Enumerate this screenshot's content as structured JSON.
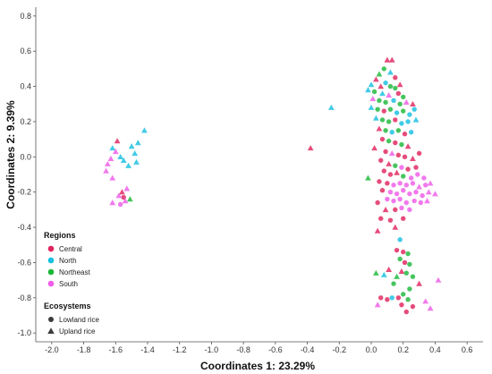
{
  "chart_data": {
    "type": "scatter",
    "xlabel": "Coordinates 1: 23.29%",
    "ylabel": "Coordinates 2: 9.39%",
    "xlim": [
      -2.1,
      0.7
    ],
    "ylim": [
      -1.05,
      0.85
    ],
    "x_ticks": [
      "-2.0",
      "-1.8",
      "-1.6",
      "-1.4",
      "-1.2",
      "-1.0",
      "-0.8",
      "-0.6",
      "-0.4",
      "-0.2",
      "0.0",
      "0.2",
      "0.4",
      "0.6"
    ],
    "y_ticks": [
      "-1.0",
      "-0.8",
      "-0.6",
      "-0.4",
      "-0.2",
      "0.0",
      "0.2",
      "0.4",
      "0.6",
      "0.8"
    ],
    "grid": false,
    "legend": {
      "placement": "bottom-left",
      "regions_title": "Regions",
      "regions": [
        {
          "name": "Central",
          "color": "#E0245E"
        },
        {
          "name": "North",
          "color": "#17BFE0"
        },
        {
          "name": "Northeast",
          "color": "#1DB83A"
        },
        {
          "name": "South",
          "color": "#EE5CE8"
        }
      ],
      "ecosystems_title": "Ecosystems",
      "ecosystems": [
        {
          "name": "Lowland rice",
          "shape": "circle"
        },
        {
          "name": "Upland rice",
          "shape": "triangle"
        }
      ]
    },
    "points": [
      {
        "x": -1.59,
        "y": 0.09,
        "region": "Central",
        "eco": "Upland rice"
      },
      {
        "x": -1.62,
        "y": 0.05,
        "region": "North",
        "eco": "Upland rice"
      },
      {
        "x": -1.6,
        "y": 0.03,
        "region": "South",
        "eco": "Upland rice"
      },
      {
        "x": -1.57,
        "y": 0.0,
        "region": "North",
        "eco": "Upland rice"
      },
      {
        "x": -1.63,
        "y": -0.01,
        "region": "South",
        "eco": "Upland rice"
      },
      {
        "x": -1.65,
        "y": -0.04,
        "region": "South",
        "eco": "Upland rice"
      },
      {
        "x": -1.66,
        "y": -0.08,
        "region": "South",
        "eco": "Upland rice"
      },
      {
        "x": -1.62,
        "y": -0.12,
        "region": "South",
        "eco": "Upland rice"
      },
      {
        "x": -1.55,
        "y": -0.02,
        "region": "North",
        "eco": "Upland rice"
      },
      {
        "x": -1.52,
        "y": -0.05,
        "region": "North",
        "eco": "Upland rice"
      },
      {
        "x": -1.48,
        "y": 0.02,
        "region": "North",
        "eco": "Upland rice"
      },
      {
        "x": -1.46,
        "y": 0.08,
        "region": "North",
        "eco": "Upland rice"
      },
      {
        "x": -1.42,
        "y": 0.15,
        "region": "North",
        "eco": "Upland rice"
      },
      {
        "x": -1.5,
        "y": 0.06,
        "region": "North",
        "eco": "Upland rice"
      },
      {
        "x": -1.47,
        "y": -0.03,
        "region": "North",
        "eco": "Upland rice"
      },
      {
        "x": -1.56,
        "y": -0.2,
        "region": "Central",
        "eco": "Upland rice"
      },
      {
        "x": -1.53,
        "y": -0.18,
        "region": "South",
        "eco": "Upland rice"
      },
      {
        "x": -1.55,
        "y": -0.23,
        "region": "Central",
        "eco": "Lowland rice"
      },
      {
        "x": -1.58,
        "y": -0.22,
        "region": "South",
        "eco": "Upland rice"
      },
      {
        "x": -1.54,
        "y": -0.25,
        "region": "South",
        "eco": "Upland rice"
      },
      {
        "x": -1.51,
        "y": -0.24,
        "region": "Northeast",
        "eco": "Upland rice"
      },
      {
        "x": -1.62,
        "y": -0.26,
        "region": "South",
        "eco": "Upland rice"
      },
      {
        "x": -1.57,
        "y": -0.27,
        "region": "South",
        "eco": "Lowland rice"
      },
      {
        "x": -0.25,
        "y": 0.28,
        "region": "North",
        "eco": "Upland rice"
      },
      {
        "x": -0.38,
        "y": 0.05,
        "region": "Central",
        "eco": "Upland rice"
      },
      {
        "x": 0.1,
        "y": 0.55,
        "region": "Central",
        "eco": "Upland rice"
      },
      {
        "x": 0.13,
        "y": 0.55,
        "region": "Central",
        "eco": "Upland rice"
      },
      {
        "x": 0.08,
        "y": 0.5,
        "region": "Northeast",
        "eco": "Lowland rice"
      },
      {
        "x": 0.12,
        "y": 0.48,
        "region": "North",
        "eco": "Upland rice"
      },
      {
        "x": 0.05,
        "y": 0.47,
        "region": "Northeast",
        "eco": "Upland rice"
      },
      {
        "x": 0.15,
        "y": 0.45,
        "region": "Central",
        "eco": "Lowland rice"
      },
      {
        "x": 0.03,
        "y": 0.44,
        "region": "Central",
        "eco": "Upland rice"
      },
      {
        "x": 0.18,
        "y": 0.41,
        "region": "Central",
        "eco": "Upland rice"
      },
      {
        "x": 0.0,
        "y": 0.41,
        "region": "North",
        "eco": "Upland rice"
      },
      {
        "x": 0.06,
        "y": 0.4,
        "region": "Central",
        "eco": "Upland rice"
      },
      {
        "x": 0.09,
        "y": 0.42,
        "region": "North",
        "eco": "Lowland rice"
      },
      {
        "x": 0.12,
        "y": 0.4,
        "region": "Northeast",
        "eco": "Lowland rice"
      },
      {
        "x": 0.15,
        "y": 0.39,
        "region": "Northeast",
        "eco": "Lowland rice"
      },
      {
        "x": -0.02,
        "y": 0.38,
        "region": "North",
        "eco": "Upland rice"
      },
      {
        "x": 0.02,
        "y": 0.37,
        "region": "Northeast",
        "eco": "Lowland rice"
      },
      {
        "x": 0.07,
        "y": 0.36,
        "region": "North",
        "eco": "Upland rice"
      },
      {
        "x": 0.11,
        "y": 0.35,
        "region": "South",
        "eco": "Upland rice"
      },
      {
        "x": 0.17,
        "y": 0.36,
        "region": "Central",
        "eco": "Lowland rice"
      },
      {
        "x": 0.2,
        "y": 0.34,
        "region": "Northeast",
        "eco": "Lowland rice"
      },
      {
        "x": 0.01,
        "y": 0.33,
        "region": "South",
        "eco": "Upland rice"
      },
      {
        "x": 0.05,
        "y": 0.32,
        "region": "Northeast",
        "eco": "Lowland rice"
      },
      {
        "x": 0.09,
        "y": 0.31,
        "region": "Northeast",
        "eco": "Lowland rice"
      },
      {
        "x": 0.14,
        "y": 0.32,
        "region": "North",
        "eco": "Lowland rice"
      },
      {
        "x": 0.18,
        "y": 0.3,
        "region": "Northeast",
        "eco": "Lowland rice"
      },
      {
        "x": 0.22,
        "y": 0.31,
        "region": "South",
        "eco": "Upland rice"
      },
      {
        "x": 0.26,
        "y": 0.3,
        "region": "Central",
        "eco": "Upland rice"
      },
      {
        "x": 0.0,
        "y": 0.28,
        "region": "North",
        "eco": "Upland rice"
      },
      {
        "x": 0.04,
        "y": 0.27,
        "region": "Northeast",
        "eco": "Lowland rice"
      },
      {
        "x": 0.08,
        "y": 0.26,
        "region": "Central",
        "eco": "Lowland rice"
      },
      {
        "x": 0.12,
        "y": 0.27,
        "region": "Northeast",
        "eco": "Lowland rice"
      },
      {
        "x": 0.16,
        "y": 0.25,
        "region": "North",
        "eco": "Lowland rice"
      },
      {
        "x": 0.2,
        "y": 0.26,
        "region": "Northeast",
        "eco": "Lowland rice"
      },
      {
        "x": 0.24,
        "y": 0.24,
        "region": "North",
        "eco": "Lowland rice"
      },
      {
        "x": 0.27,
        "y": 0.27,
        "region": "North",
        "eco": "Lowland rice"
      },
      {
        "x": 0.03,
        "y": 0.22,
        "region": "North",
        "eco": "Upland rice"
      },
      {
        "x": 0.07,
        "y": 0.21,
        "region": "Northeast",
        "eco": "Lowland rice"
      },
      {
        "x": 0.11,
        "y": 0.2,
        "region": "Northeast",
        "eco": "Lowland rice"
      },
      {
        "x": 0.15,
        "y": 0.21,
        "region": "Central",
        "eco": "Lowland rice"
      },
      {
        "x": 0.19,
        "y": 0.19,
        "region": "North",
        "eco": "Lowland rice"
      },
      {
        "x": 0.23,
        "y": 0.2,
        "region": "North",
        "eco": "Lowland rice"
      },
      {
        "x": 0.28,
        "y": 0.21,
        "region": "North",
        "eco": "Upland rice"
      },
      {
        "x": 0.05,
        "y": 0.16,
        "region": "Central",
        "eco": "Upland rice"
      },
      {
        "x": 0.09,
        "y": 0.15,
        "region": "Northeast",
        "eco": "Lowland rice"
      },
      {
        "x": 0.13,
        "y": 0.14,
        "region": "North",
        "eco": "Lowland rice"
      },
      {
        "x": 0.17,
        "y": 0.15,
        "region": "Northeast",
        "eco": "Lowland rice"
      },
      {
        "x": 0.21,
        "y": 0.13,
        "region": "Central",
        "eco": "Lowland rice"
      },
      {
        "x": 0.25,
        "y": 0.14,
        "region": "North",
        "eco": "Lowland rice"
      },
      {
        "x": 0.07,
        "y": 0.1,
        "region": "Central",
        "eco": "Lowland rice"
      },
      {
        "x": 0.11,
        "y": 0.09,
        "region": "Northeast",
        "eco": "Lowland rice"
      },
      {
        "x": 0.15,
        "y": 0.08,
        "region": "Central",
        "eco": "Lowland rice"
      },
      {
        "x": 0.19,
        "y": 0.07,
        "region": "Northeast",
        "eco": "Lowland rice"
      },
      {
        "x": 0.23,
        "y": 0.06,
        "region": "Central",
        "eco": "Upland rice"
      },
      {
        "x": 0.02,
        "y": 0.05,
        "region": "Central",
        "eco": "Upland rice"
      },
      {
        "x": 0.09,
        "y": 0.03,
        "region": "Central",
        "eco": "Lowland rice"
      },
      {
        "x": 0.13,
        "y": 0.02,
        "region": "South",
        "eco": "Upland rice"
      },
      {
        "x": 0.17,
        "y": 0.01,
        "region": "Central",
        "eco": "Lowland rice"
      },
      {
        "x": 0.21,
        "y": 0.0,
        "region": "Central",
        "eco": "Lowland rice"
      },
      {
        "x": 0.26,
        "y": -0.01,
        "region": "Central",
        "eco": "Upland rice"
      },
      {
        "x": 0.3,
        "y": 0.02,
        "region": "Central",
        "eco": "Lowland rice"
      },
      {
        "x": 0.06,
        "y": -0.02,
        "region": "Central",
        "eco": "Lowland rice"
      },
      {
        "x": 0.11,
        "y": -0.04,
        "region": "Central",
        "eco": "Upland rice"
      },
      {
        "x": 0.15,
        "y": -0.05,
        "region": "Northeast",
        "eco": "Lowland rice"
      },
      {
        "x": 0.19,
        "y": -0.06,
        "region": "South",
        "eco": "Lowland rice"
      },
      {
        "x": 0.23,
        "y": -0.07,
        "region": "Central",
        "eco": "Lowland rice"
      },
      {
        "x": 0.28,
        "y": -0.06,
        "region": "Central",
        "eco": "Lowland rice"
      },
      {
        "x": 0.08,
        "y": -0.08,
        "region": "Central",
        "eco": "Lowland rice"
      },
      {
        "x": 0.12,
        "y": -0.1,
        "region": "Central",
        "eco": "Lowland rice"
      },
      {
        "x": 0.16,
        "y": -0.09,
        "region": "Central",
        "eco": "Upland rice"
      },
      {
        "x": 0.2,
        "y": -0.11,
        "region": "Northeast",
        "eco": "Lowland rice"
      },
      {
        "x": 0.25,
        "y": -0.12,
        "region": "South",
        "eco": "Lowland rice"
      },
      {
        "x": 0.29,
        "y": -0.1,
        "region": "South",
        "eco": "Lowland rice"
      },
      {
        "x": 0.33,
        "y": -0.12,
        "region": "South",
        "eco": "Lowland rice"
      },
      {
        "x": -0.02,
        "y": -0.12,
        "region": "Northeast",
        "eco": "Upland rice"
      },
      {
        "x": 0.05,
        "y": -0.14,
        "region": "Central",
        "eco": "Lowland rice"
      },
      {
        "x": 0.1,
        "y": -0.15,
        "region": "Central",
        "eco": "Lowland rice"
      },
      {
        "x": 0.14,
        "y": -0.16,
        "region": "South",
        "eco": "Lowland rice"
      },
      {
        "x": 0.18,
        "y": -0.15,
        "region": "South",
        "eco": "Lowland rice"
      },
      {
        "x": 0.22,
        "y": -0.16,
        "region": "South",
        "eco": "Lowland rice"
      },
      {
        "x": 0.26,
        "y": -0.15,
        "region": "South",
        "eco": "Lowland rice"
      },
      {
        "x": 0.3,
        "y": -0.17,
        "region": "South",
        "eco": "Upland rice"
      },
      {
        "x": 0.34,
        "y": -0.16,
        "region": "South",
        "eco": "Lowland rice"
      },
      {
        "x": 0.37,
        "y": -0.15,
        "region": "South",
        "eco": "Upland rice"
      },
      {
        "x": 0.07,
        "y": -0.19,
        "region": "Central",
        "eco": "Lowland rice"
      },
      {
        "x": 0.12,
        "y": -0.2,
        "region": "South",
        "eco": "Lowland rice"
      },
      {
        "x": 0.16,
        "y": -0.21,
        "region": "South",
        "eco": "Lowland rice"
      },
      {
        "x": 0.2,
        "y": -0.19,
        "region": "South",
        "eco": "Lowland rice"
      },
      {
        "x": 0.24,
        "y": -0.21,
        "region": "South",
        "eco": "Lowland rice"
      },
      {
        "x": 0.28,
        "y": -0.2,
        "region": "South",
        "eco": "Lowland rice"
      },
      {
        "x": 0.32,
        "y": -0.22,
        "region": "South",
        "eco": "Lowland rice"
      },
      {
        "x": 0.36,
        "y": -0.2,
        "region": "South",
        "eco": "Upland rice"
      },
      {
        "x": 0.4,
        "y": -0.21,
        "region": "South",
        "eco": "Upland rice"
      },
      {
        "x": 0.1,
        "y": -0.24,
        "region": "South",
        "eco": "Lowland rice"
      },
      {
        "x": 0.14,
        "y": -0.25,
        "region": "South",
        "eco": "Lowland rice"
      },
      {
        "x": 0.18,
        "y": -0.24,
        "region": "South",
        "eco": "Lowland rice"
      },
      {
        "x": 0.22,
        "y": -0.26,
        "region": "South",
        "eco": "Lowland rice"
      },
      {
        "x": 0.27,
        "y": -0.25,
        "region": "South",
        "eco": "Lowland rice"
      },
      {
        "x": 0.31,
        "y": -0.26,
        "region": "South",
        "eco": "Lowland rice"
      },
      {
        "x": 0.35,
        "y": -0.25,
        "region": "South",
        "eco": "Upland rice"
      },
      {
        "x": 0.04,
        "y": -0.26,
        "region": "Central",
        "eco": "Lowland rice"
      },
      {
        "x": 0.09,
        "y": -0.3,
        "region": "Central",
        "eco": "Upland rice"
      },
      {
        "x": 0.15,
        "y": -0.3,
        "region": "Central",
        "eco": "Lowland rice"
      },
      {
        "x": 0.19,
        "y": -0.29,
        "region": "South",
        "eco": "Lowland rice"
      },
      {
        "x": 0.24,
        "y": -0.3,
        "region": "South",
        "eco": "Lowland rice"
      },
      {
        "x": 0.06,
        "y": -0.35,
        "region": "Central",
        "eco": "Lowland rice"
      },
      {
        "x": 0.12,
        "y": -0.36,
        "region": "Central",
        "eco": "Lowland rice"
      },
      {
        "x": 0.2,
        "y": -0.35,
        "region": "Central",
        "eco": "Lowland rice"
      },
      {
        "x": 0.15,
        "y": -0.4,
        "region": "Central",
        "eco": "Upland rice"
      },
      {
        "x": 0.04,
        "y": -0.42,
        "region": "Central",
        "eco": "Upland rice"
      },
      {
        "x": 0.18,
        "y": -0.47,
        "region": "North",
        "eco": "Lowland rice"
      },
      {
        "x": 0.16,
        "y": -0.53,
        "region": "Central",
        "eco": "Lowland rice"
      },
      {
        "x": 0.2,
        "y": -0.54,
        "region": "Central",
        "eco": "Lowland rice"
      },
      {
        "x": 0.23,
        "y": -0.55,
        "region": "Northeast",
        "eco": "Lowland rice"
      },
      {
        "x": 0.18,
        "y": -0.58,
        "region": "Northeast",
        "eco": "Lowland rice"
      },
      {
        "x": 0.21,
        "y": -0.6,
        "region": "Central",
        "eco": "Lowland rice"
      },
      {
        "x": 0.24,
        "y": -0.61,
        "region": "Northeast",
        "eco": "Lowland rice"
      },
      {
        "x": 0.19,
        "y": -0.65,
        "region": "Central",
        "eco": "Upland rice"
      },
      {
        "x": 0.11,
        "y": -0.64,
        "region": "Central",
        "eco": "Upland rice"
      },
      {
        "x": 0.08,
        "y": -0.67,
        "region": "North",
        "eco": "Upland rice"
      },
      {
        "x": 0.16,
        "y": -0.68,
        "region": "Northeast",
        "eco": "Upland rice"
      },
      {
        "x": 0.03,
        "y": -0.66,
        "region": "Northeast",
        "eco": "Upland rice"
      },
      {
        "x": 0.22,
        "y": -0.66,
        "region": "Northeast",
        "eco": "Lowland rice"
      },
      {
        "x": 0.26,
        "y": -0.68,
        "region": "Northeast",
        "eco": "Lowland rice"
      },
      {
        "x": 0.14,
        "y": -0.72,
        "region": "Northeast",
        "eco": "Lowland rice"
      },
      {
        "x": 0.3,
        "y": -0.72,
        "region": "Central",
        "eco": "Upland rice"
      },
      {
        "x": 0.24,
        "y": -0.75,
        "region": "Northeast",
        "eco": "Lowland rice"
      },
      {
        "x": 0.42,
        "y": -0.7,
        "region": "South",
        "eco": "Upland rice"
      },
      {
        "x": 0.2,
        "y": -0.78,
        "region": "Northeast",
        "eco": "Lowland rice"
      },
      {
        "x": 0.06,
        "y": -0.8,
        "region": "Central",
        "eco": "Lowland rice"
      },
      {
        "x": 0.1,
        "y": -0.81,
        "region": "Central",
        "eco": "Lowland rice"
      },
      {
        "x": 0.17,
        "y": -0.8,
        "region": "Central",
        "eco": "Lowland rice"
      },
      {
        "x": 0.13,
        "y": -0.8,
        "region": "North",
        "eco": "Lowland rice"
      },
      {
        "x": 0.23,
        "y": -0.81,
        "region": "Northeast",
        "eco": "Lowland rice"
      },
      {
        "x": 0.04,
        "y": -0.84,
        "region": "South",
        "eco": "Upland rice"
      },
      {
        "x": 0.19,
        "y": -0.84,
        "region": "Central",
        "eco": "Lowland rice"
      },
      {
        "x": 0.26,
        "y": -0.85,
        "region": "Central",
        "eco": "Lowland rice"
      },
      {
        "x": 0.34,
        "y": -0.82,
        "region": "South",
        "eco": "Upland rice"
      },
      {
        "x": 0.37,
        "y": -0.86,
        "region": "South",
        "eco": "Upland rice"
      },
      {
        "x": 0.22,
        "y": -0.88,
        "region": "Central",
        "eco": "Lowland rice"
      }
    ]
  }
}
